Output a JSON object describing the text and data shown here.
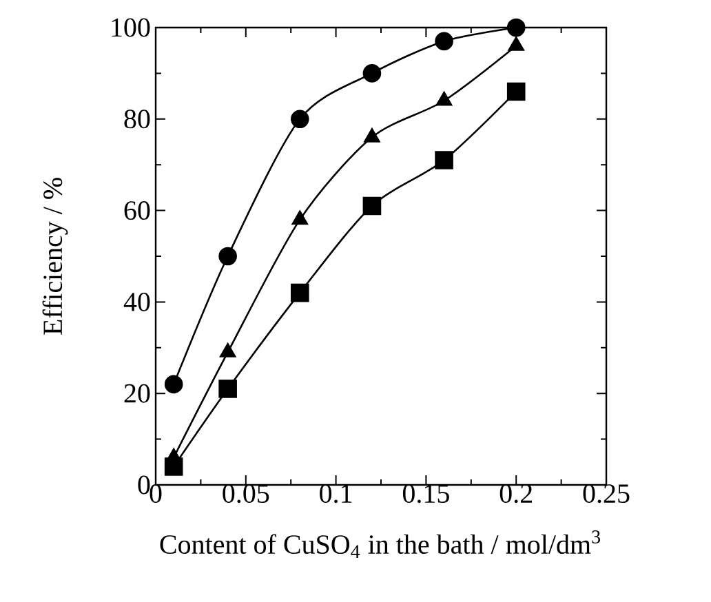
{
  "chart_data": {
    "type": "line",
    "xlabel": "Content of CuSO$_{4}$ in the bath / mol/dm$^{3}$",
    "ylabel": "Efficiency / %",
    "x": [
      0.01,
      0.04,
      0.08,
      0.12,
      0.16,
      0.2
    ],
    "series": [
      {
        "color": "#000000",
        "marker": "circle",
        "values": [
          22,
          50,
          80,
          90,
          97,
          100
        ]
      },
      {
        "color": "#000000",
        "marker": "triangle",
        "values": [
          6,
          29,
          58,
          76,
          84,
          96
        ]
      },
      {
        "color": "#000000",
        "marker": "square",
        "values": [
          4,
          21,
          42,
          61,
          71,
          86
        ]
      }
    ],
    "xlim": [
      0,
      0.25
    ],
    "ylim": [
      0,
      100
    ],
    "xticks": [
      0,
      0.05,
      0.1,
      0.15,
      0.2,
      0.25
    ],
    "yticks": [
      0,
      20,
      40,
      60,
      80,
      100
    ],
    "line_style": "solid"
  }
}
